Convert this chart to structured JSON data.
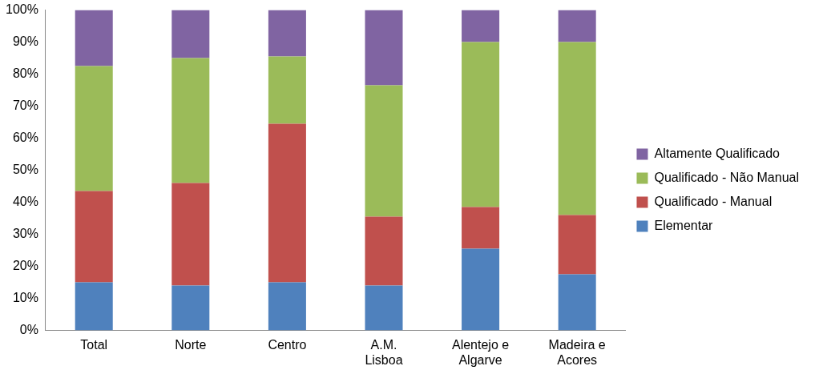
{
  "chart_data": {
    "type": "bar",
    "stacked": true,
    "categories": [
      "Total",
      "Norte",
      "Centro",
      "A.M. Lisboa",
      "Alentejo e Algarve",
      "Madeira e Acores"
    ],
    "series": [
      {
        "name": "Elementar",
        "color": "#4f81bd",
        "values": [
          15,
          14,
          15,
          14,
          25.5,
          17.5
        ]
      },
      {
        "name": "Qualificado - Manual",
        "color": "#c0504d",
        "values": [
          28.5,
          32,
          49.5,
          21.5,
          13,
          18.5
        ]
      },
      {
        "name": "Qualificado - Não Manual",
        "color": "#9bbb59",
        "values": [
          39,
          39,
          21,
          41,
          51.5,
          54
        ]
      },
      {
        "name": "Altamente Qualificado",
        "color": "#8064a2",
        "values": [
          17.5,
          15,
          14.5,
          23.5,
          10,
          10
        ]
      }
    ],
    "ylim": [
      0,
      100
    ],
    "yticks": [
      {
        "value": 0,
        "label": "0%"
      },
      {
        "value": 10,
        "label": "10%"
      },
      {
        "value": 20,
        "label": "20%"
      },
      {
        "value": 30,
        "label": "30%"
      },
      {
        "value": 40,
        "label": "40%"
      },
      {
        "value": 50,
        "label": "50%"
      },
      {
        "value": 60,
        "label": "60%"
      },
      {
        "value": 70,
        "label": "70%"
      },
      {
        "value": 80,
        "label": "80%"
      },
      {
        "value": 90,
        "label": "90%"
      },
      {
        "value": 100,
        "label": "100%"
      }
    ],
    "grid": false,
    "legend": "right"
  }
}
